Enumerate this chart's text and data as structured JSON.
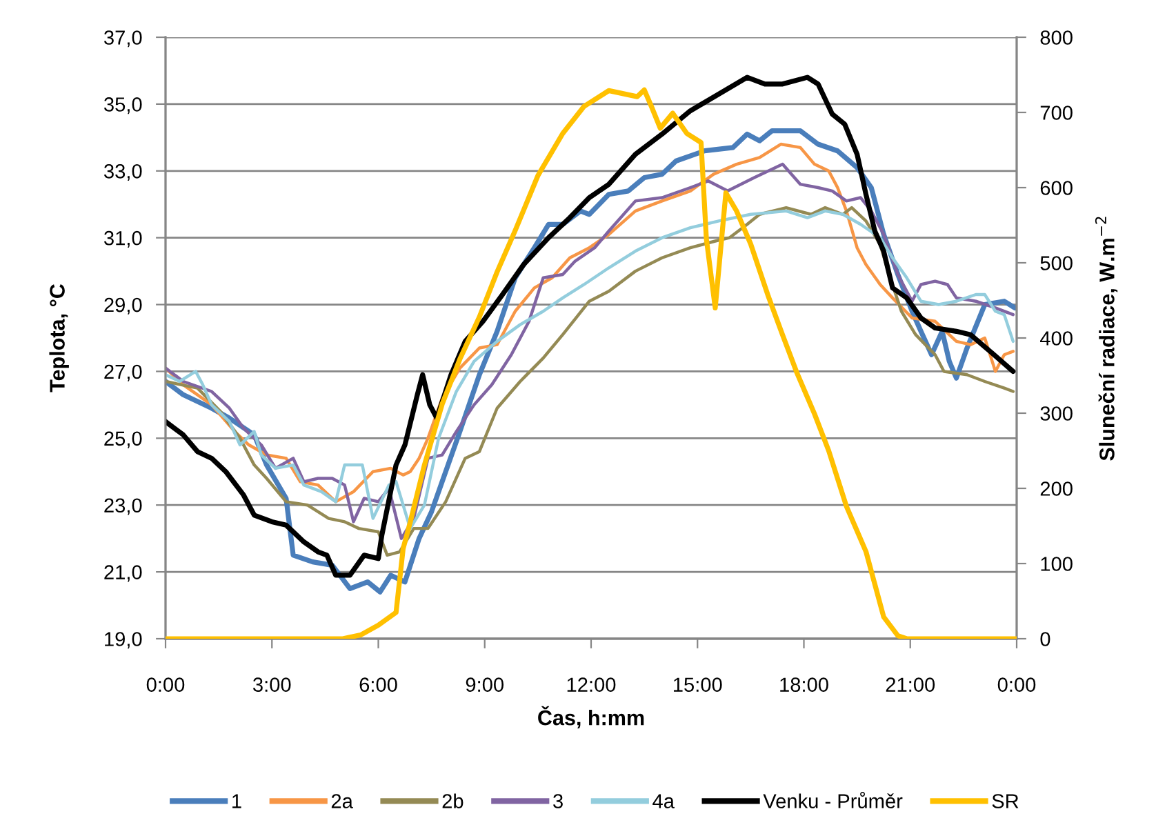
{
  "chart_data": {
    "type": "line",
    "xlabel": "Čas, h:mm",
    "ylabel": "Teplota, °C",
    "y2label": "Sluneční radiace, W.m$^{−2}$",
    "xlim": [
      0,
      24
    ],
    "xticks": [
      {
        "value": 0,
        "label": "0:00"
      },
      {
        "value": 3,
        "label": "3:00"
      },
      {
        "value": 6,
        "label": "6:00"
      },
      {
        "value": 9,
        "label": "9:00"
      },
      {
        "value": 12,
        "label": "12:00"
      },
      {
        "value": 15,
        "label": "15:00"
      },
      {
        "value": 18,
        "label": "18:00"
      },
      {
        "value": 21,
        "label": "21:00"
      },
      {
        "value": 24,
        "label": "0:00"
      }
    ],
    "ylim": [
      19,
      37
    ],
    "yticks": [
      {
        "value": 19,
        "label": "19,0"
      },
      {
        "value": 21,
        "label": "21,0"
      },
      {
        "value": 23,
        "label": "23,0"
      },
      {
        "value": 25,
        "label": "25,0"
      },
      {
        "value": 27,
        "label": "27,0"
      },
      {
        "value": 29,
        "label": "29,0"
      },
      {
        "value": 31,
        "label": "31,0"
      },
      {
        "value": 33,
        "label": "33,0"
      },
      {
        "value": 35,
        "label": "35,0"
      },
      {
        "value": 37,
        "label": "37,0"
      }
    ],
    "y2lim": [
      0,
      800
    ],
    "y2ticks": [
      0,
      100,
      200,
      300,
      400,
      500,
      600,
      700,
      800
    ],
    "grid": "y",
    "legend": "bottom",
    "series": [
      {
        "name": "1",
        "color": "#4a7ebb",
        "x": [
          0,
          0.5,
          1.3,
          1.8,
          2.5,
          2.85,
          3.4,
          3.6,
          4.15,
          4.7,
          5.2,
          5.7,
          6.05,
          6.35,
          6.75,
          7.15,
          7.5,
          7.8,
          8.3,
          8.85,
          9.35,
          9.86,
          10.4,
          10.8,
          11.2,
          11.7,
          11.95,
          12.5,
          13.05,
          13.5,
          14.0,
          14.4,
          15.2,
          16.0,
          16.4,
          16.75,
          17.1,
          17.9,
          18.4,
          18.95,
          19.5,
          19.9,
          20.25,
          20.65,
          21.05,
          21.3,
          21.6,
          21.9,
          22.1,
          22.3,
          22.6,
          23.1,
          23.65,
          23.95
        ],
        "values": [
          26.7,
          26.3,
          25.9,
          25.6,
          25.1,
          24.2,
          23.2,
          21.5,
          21.3,
          21.2,
          20.5,
          20.7,
          20.4,
          20.9,
          20.7,
          22.0,
          22.8,
          23.7,
          25.2,
          26.9,
          28.2,
          29.8,
          30.7,
          31.4,
          31.4,
          31.8,
          31.7,
          32.3,
          32.4,
          32.8,
          32.9,
          33.3,
          33.6,
          33.7,
          34.1,
          33.9,
          34.2,
          34.2,
          33.8,
          33.6,
          33.1,
          32.5,
          31.1,
          29.9,
          28.8,
          28.2,
          27.5,
          28.2,
          27.3,
          26.8,
          27.7,
          29.0,
          29.1,
          28.9
        ]
      },
      {
        "name": "2a",
        "color": "#f79646",
        "x": [
          0,
          0.5,
          1.3,
          1.95,
          2.35,
          2.85,
          3.4,
          3.8,
          4.3,
          4.8,
          5.3,
          5.85,
          6.35,
          6.7,
          6.9,
          7.15,
          7.4,
          7.8,
          8.3,
          8.85,
          9.35,
          9.86,
          10.4,
          10.9,
          11.4,
          11.95,
          12.5,
          13.25,
          14.0,
          14.8,
          15.45,
          16.1,
          16.75,
          17.35,
          17.9,
          18.3,
          18.7,
          18.95,
          19.2,
          19.5,
          19.75,
          20.15,
          20.5,
          21.05,
          21.7,
          22.3,
          22.7,
          23.1,
          23.4,
          23.65,
          23.9
        ],
        "values": [
          27.1,
          26.6,
          26.0,
          25.2,
          24.8,
          24.5,
          24.4,
          23.7,
          23.6,
          23.1,
          23.4,
          24.0,
          24.1,
          23.9,
          24.0,
          24.4,
          25.0,
          26.2,
          27.1,
          27.7,
          27.8,
          28.8,
          29.5,
          29.8,
          30.4,
          30.7,
          31.1,
          31.8,
          32.1,
          32.4,
          32.9,
          33.2,
          33.4,
          33.8,
          33.7,
          33.2,
          33.0,
          32.5,
          31.8,
          30.7,
          30.2,
          29.6,
          29.2,
          28.6,
          28.5,
          27.9,
          27.8,
          28.0,
          27.0,
          27.5,
          27.6
        ]
      },
      {
        "name": "2b",
        "color": "#948a54",
        "x": [
          0,
          0.9,
          1.55,
          2.1,
          2.5,
          2.85,
          3.4,
          4.0,
          4.6,
          5.05,
          5.45,
          6.0,
          6.25,
          6.6,
          7.0,
          7.4,
          7.9,
          8.45,
          8.85,
          9.35,
          10.0,
          10.65,
          11.2,
          11.95,
          12.5,
          13.25,
          14.0,
          14.8,
          15.5,
          15.9,
          16.4,
          16.75,
          17.5,
          18.2,
          18.6,
          19.1,
          19.35,
          19.75,
          20.15,
          20.4,
          20.75,
          21.15,
          21.7,
          21.95,
          22.6,
          23.1,
          23.65,
          23.9
        ],
        "values": [
          26.7,
          26.5,
          25.8,
          25.0,
          24.2,
          23.8,
          23.1,
          23.0,
          22.6,
          22.5,
          22.3,
          22.2,
          21.5,
          21.6,
          22.3,
          22.3,
          23.1,
          24.4,
          24.6,
          25.9,
          26.7,
          27.4,
          28.1,
          29.1,
          29.4,
          30.0,
          30.4,
          30.7,
          30.9,
          31.0,
          31.4,
          31.7,
          31.9,
          31.7,
          31.9,
          31.7,
          31.9,
          31.5,
          30.8,
          29.9,
          28.8,
          28.1,
          27.5,
          27.0,
          26.9,
          26.7,
          26.5,
          26.4
        ]
      },
      {
        "name": "3",
        "color": "#8064a2",
        "x": [
          0,
          0.5,
          1.3,
          1.8,
          2.2,
          2.7,
          3.1,
          3.6,
          3.9,
          4.3,
          4.7,
          5.05,
          5.3,
          5.6,
          6.0,
          6.3,
          6.65,
          7.0,
          7.4,
          7.8,
          8.2,
          8.7,
          9.2,
          9.75,
          10.25,
          10.65,
          11.2,
          11.55,
          12.1,
          12.5,
          13.25,
          14.0,
          14.8,
          15.3,
          15.85,
          16.6,
          17.4,
          17.9,
          18.4,
          18.8,
          19.2,
          19.6,
          19.9,
          20.25,
          20.65,
          21.05,
          21.3,
          21.7,
          22.05,
          22.3,
          22.85,
          23.4,
          23.9
        ],
        "values": [
          27.1,
          26.7,
          26.4,
          25.9,
          25.3,
          24.8,
          24.1,
          24.4,
          23.7,
          23.8,
          23.8,
          23.6,
          22.5,
          23.2,
          23.1,
          23.5,
          22.0,
          22.6,
          24.4,
          24.5,
          25.2,
          26.0,
          26.6,
          27.5,
          28.5,
          29.8,
          29.9,
          30.3,
          30.7,
          31.2,
          32.1,
          32.2,
          32.5,
          32.7,
          32.4,
          32.8,
          33.2,
          32.6,
          32.5,
          32.4,
          32.1,
          32.2,
          31.8,
          31.1,
          29.9,
          29.1,
          29.6,
          29.7,
          29.6,
          29.2,
          29.1,
          28.9,
          28.7
        ]
      },
      {
        "name": "4a",
        "color": "#93cddd",
        "x": [
          0,
          0.4,
          0.85,
          1.05,
          1.3,
          1.8,
          2.1,
          2.5,
          2.7,
          3.1,
          3.6,
          3.9,
          4.4,
          4.8,
          5.05,
          5.55,
          5.85,
          6.3,
          6.5,
          6.9,
          7.3,
          7.7,
          8.2,
          8.7,
          9.35,
          10.0,
          10.65,
          11.2,
          11.8,
          12.5,
          13.25,
          14.0,
          14.8,
          15.6,
          16.5,
          17.5,
          18.1,
          18.6,
          19.1,
          19.6,
          20.15,
          20.5,
          20.9,
          21.3,
          21.8,
          22.3,
          22.85,
          23.1,
          23.4,
          23.65,
          23.9
        ],
        "values": [
          26.9,
          26.7,
          27.0,
          26.6,
          26.0,
          25.5,
          24.8,
          25.2,
          24.5,
          24.1,
          24.2,
          23.6,
          23.4,
          23.1,
          24.2,
          24.2,
          22.6,
          23.6,
          23.7,
          22.3,
          23.0,
          25.0,
          26.4,
          27.3,
          27.9,
          28.4,
          28.8,
          29.2,
          29.6,
          30.1,
          30.6,
          31.0,
          31.3,
          31.5,
          31.7,
          31.8,
          31.6,
          31.8,
          31.7,
          31.4,
          31.0,
          30.4,
          29.8,
          29.1,
          29.0,
          29.1,
          29.3,
          29.3,
          28.8,
          28.7,
          27.9
        ]
      },
      {
        "name": "Venku - Průměr",
        "color": "#000000",
        "x": [
          0,
          0.5,
          0.9,
          1.3,
          1.7,
          2.2,
          2.5,
          3.0,
          3.4,
          3.9,
          4.3,
          4.55,
          4.8,
          5.2,
          5.6,
          6.0,
          6.1,
          6.5,
          6.75,
          7.1,
          7.25,
          7.45,
          7.65,
          8.05,
          8.45,
          8.95,
          9.5,
          10.1,
          10.8,
          11.4,
          11.95,
          12.5,
          13.25,
          14.0,
          14.8,
          15.6,
          16.4,
          16.9,
          17.4,
          18.1,
          18.4,
          18.8,
          19.15,
          19.5,
          19.75,
          20.0,
          20.25,
          20.5,
          20.9,
          21.3,
          21.7,
          22.3,
          22.7,
          23.25,
          23.9
        ],
        "values": [
          25.5,
          25.1,
          24.6,
          24.4,
          24.0,
          23.3,
          22.7,
          22.5,
          22.4,
          21.9,
          21.6,
          21.5,
          20.9,
          20.9,
          21.5,
          21.4,
          22.1,
          24.2,
          24.8,
          26.3,
          26.9,
          26.0,
          25.6,
          26.9,
          27.9,
          28.5,
          29.3,
          30.2,
          31.0,
          31.6,
          32.2,
          32.6,
          33.5,
          34.1,
          34.8,
          35.3,
          35.8,
          35.6,
          35.6,
          35.8,
          35.6,
          34.7,
          34.4,
          33.5,
          32.3,
          31.2,
          30.6,
          29.5,
          29.2,
          28.6,
          28.3,
          28.2,
          28.1,
          27.6,
          27.0
        ]
      },
      {
        "name": "SR",
        "color": "#ffc000",
        "axis": "y2",
        "x": [
          0,
          5.0,
          5.5,
          6.0,
          6.5,
          6.7,
          6.9,
          7.3,
          7.8,
          8.3,
          8.85,
          9.35,
          9.86,
          10.5,
          11.2,
          11.8,
          12.5,
          13.3,
          13.5,
          13.7,
          13.95,
          14.3,
          14.7,
          15.1,
          15.25,
          15.5,
          15.8,
          16.1,
          16.5,
          17.0,
          17.4,
          17.8,
          18.3,
          18.7,
          19.2,
          19.75,
          20.25,
          20.65,
          20.9,
          24
        ],
        "values": [
          0,
          0,
          5,
          18,
          35,
          120,
          155,
          231,
          312,
          372,
          428,
          488,
          543,
          616,
          672,
          708,
          729,
          721,
          730,
          708,
          679,
          699,
          672,
          660,
          532,
          440,
          593,
          569,
          525,
          455,
          404,
          354,
          299,
          250,
          176,
          116,
          29,
          4,
          0,
          0
        ]
      }
    ]
  }
}
